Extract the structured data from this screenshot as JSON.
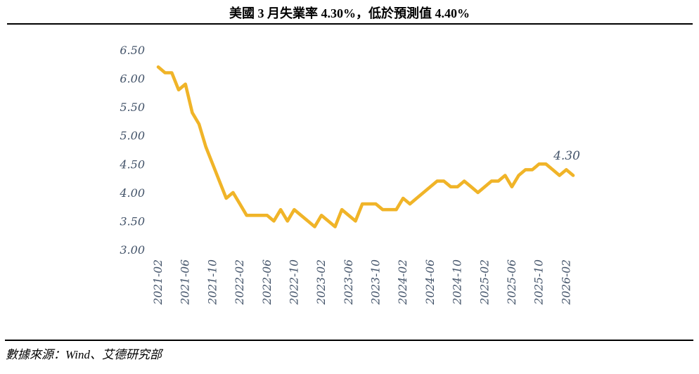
{
  "title": "美國 3 月失業率 4.30%，低於預測值 4.40%",
  "footer": {
    "source_text": "數據來源：Wind、艾德研究部"
  },
  "colors": {
    "line": "#F0B428",
    "axis_label": "#44546A",
    "title_text": "#000000",
    "rule": "#000000",
    "background": "#FFFFFF"
  },
  "chart_data": {
    "type": "line",
    "title": "美國 3 月失業率 4.30%，低於預測值 4.40%",
    "x": [
      "2021-02",
      "2021-03",
      "2021-04",
      "2021-05",
      "2021-06",
      "2021-07",
      "2021-08",
      "2021-09",
      "2021-10",
      "2021-11",
      "2021-12",
      "2022-01",
      "2022-02",
      "2022-03",
      "2022-04",
      "2022-05",
      "2022-06",
      "2022-07",
      "2022-08",
      "2022-09",
      "2022-10",
      "2022-11",
      "2022-12",
      "2023-01",
      "2023-02",
      "2023-03",
      "2023-04",
      "2023-05",
      "2023-06",
      "2023-07",
      "2023-08",
      "2023-09",
      "2023-10",
      "2023-11",
      "2023-12",
      "2024-01",
      "2024-02",
      "2024-03",
      "2024-04",
      "2024-05",
      "2024-06",
      "2024-07",
      "2024-08",
      "2024-09",
      "2024-10",
      "2024-11",
      "2024-12",
      "2025-01",
      "2025-02",
      "2025-03",
      "2025-04",
      "2025-05",
      "2025-06",
      "2025-07",
      "2025-08",
      "2025-09",
      "2025-10",
      "2025-11",
      "2025-12",
      "2026-01",
      "2026-02",
      "2026-03"
    ],
    "values": [
      6.2,
      6.1,
      6.1,
      5.8,
      5.9,
      5.4,
      5.2,
      4.8,
      4.5,
      4.2,
      3.9,
      4.0,
      3.8,
      3.6,
      3.6,
      3.6,
      3.6,
      3.5,
      3.7,
      3.5,
      3.7,
      3.6,
      3.5,
      3.4,
      3.6,
      3.5,
      3.4,
      3.7,
      3.6,
      3.5,
      3.8,
      3.8,
      3.8,
      3.7,
      3.7,
      3.7,
      3.9,
      3.8,
      3.9,
      4.0,
      4.1,
      4.2,
      4.2,
      4.1,
      4.1,
      4.2,
      4.1,
      4.0,
      4.1,
      4.2,
      4.2,
      4.3,
      4.1,
      4.3,
      4.4,
      4.4,
      4.5,
      4.5,
      4.4,
      4.3,
      4.4,
      4.3
    ],
    "y_tick_labels": [
      "6.50",
      "6.00",
      "5.50",
      "5.00",
      "4.50",
      "4.00",
      "3.50",
      "3.00"
    ],
    "x_tick_labels": [
      "2021-02",
      "2021-06",
      "2021-10",
      "2022-02",
      "2022-06",
      "2022-10",
      "2023-02",
      "2023-06",
      "2023-10",
      "2024-02",
      "2024-06",
      "2024-10",
      "2025-02",
      "2025-06",
      "2025-10",
      "2026-02"
    ],
    "x_tick_step_months": 4,
    "ylim": [
      3.0,
      6.5
    ],
    "grid": false,
    "legend": "none",
    "annotation": {
      "text": "4.30",
      "x": "2026-03",
      "value": 4.3
    }
  }
}
